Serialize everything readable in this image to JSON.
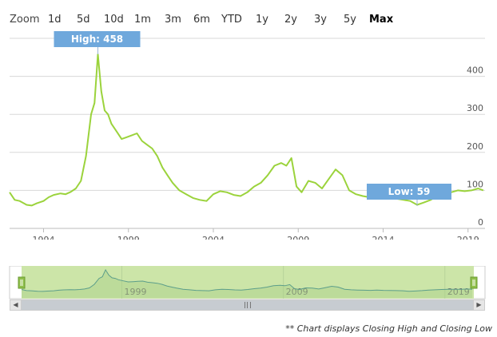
{
  "range_selector": {
    "zoom_label": "Zoom",
    "buttons": [
      "1d",
      "5d",
      "10d",
      "1m",
      "3m",
      "6m",
      "YTD",
      "1y",
      "2y",
      "3y",
      "5y",
      "Max"
    ],
    "active": "Max"
  },
  "footnote": "** Chart displays Closing High and Closing Low",
  "colors": {
    "series_line": "#9bd33c",
    "flag_fill": "#6fa8dc",
    "navigator_fill": "#cce5a8",
    "navigator_line": "#5c9e8a",
    "gridline": "#d8d8d8"
  },
  "chart_data": {
    "type": "line",
    "ylim": [
      0,
      500
    ],
    "xlim": [
      1992.0,
      2020.0
    ],
    "y_ticks": [
      0,
      100,
      200,
      300,
      400
    ],
    "x_ticks": [
      1994,
      1999,
      2004,
      2009,
      2014,
      2019
    ],
    "navigator_ticks": [
      1999,
      2009,
      2019
    ],
    "grid": true,
    "flags": [
      {
        "text": "High: 458",
        "x": 1997.2,
        "y": 458
      },
      {
        "text": "Low: 59",
        "x": 2016.0,
        "y": 59
      }
    ],
    "series": [
      {
        "x": [
          1992.0,
          1992.3,
          1992.6,
          1993.0,
          1993.3,
          1993.6,
          1994.0,
          1994.3,
          1994.6,
          1995.0,
          1995.3,
          1995.6,
          1995.9,
          1996.2,
          1996.5,
          1996.8,
          1997.0,
          1997.2,
          1997.4,
          1997.6,
          1997.8,
          1998.0,
          1998.3,
          1998.6,
          1998.9,
          1999.2,
          1999.5,
          1999.8,
          2000.1,
          2000.4,
          2000.7,
          2001.0,
          2001.3,
          2001.6,
          2002.0,
          2002.4,
          2002.8,
          2003.2,
          2003.6,
          2004.0,
          2004.4,
          2004.8,
          2005.2,
          2005.6,
          2006.0,
          2006.4,
          2006.8,
          2007.2,
          2007.6,
          2008.0,
          2008.3,
          2008.6,
          2008.9,
          2009.2,
          2009.6,
          2010.0,
          2010.4,
          2010.8,
          2011.2,
          2011.6,
          2012.0,
          2012.4,
          2012.8,
          2013.2,
          2013.6,
          2014.0,
          2014.4,
          2014.8,
          2015.2,
          2015.6,
          2016.0,
          2016.4,
          2016.8,
          2017.2,
          2017.6,
          2018.0,
          2018.4,
          2018.8,
          2019.2,
          2019.6,
          2019.9
        ],
        "y": [
          95,
          75,
          72,
          62,
          60,
          66,
          72,
          82,
          88,
          92,
          90,
          96,
          105,
          125,
          190,
          300,
          330,
          458,
          360,
          310,
          300,
          275,
          255,
          235,
          240,
          245,
          250,
          230,
          220,
          210,
          190,
          160,
          140,
          120,
          100,
          90,
          80,
          75,
          72,
          90,
          98,
          95,
          88,
          85,
          95,
          110,
          120,
          140,
          165,
          172,
          165,
          185,
          110,
          95,
          125,
          120,
          105,
          130,
          155,
          140,
          100,
          90,
          85,
          82,
          80,
          84,
          80,
          78,
          75,
          72,
          62,
          68,
          75,
          85,
          90,
          95,
          100,
          98,
          100,
          105,
          100
        ]
      }
    ]
  }
}
